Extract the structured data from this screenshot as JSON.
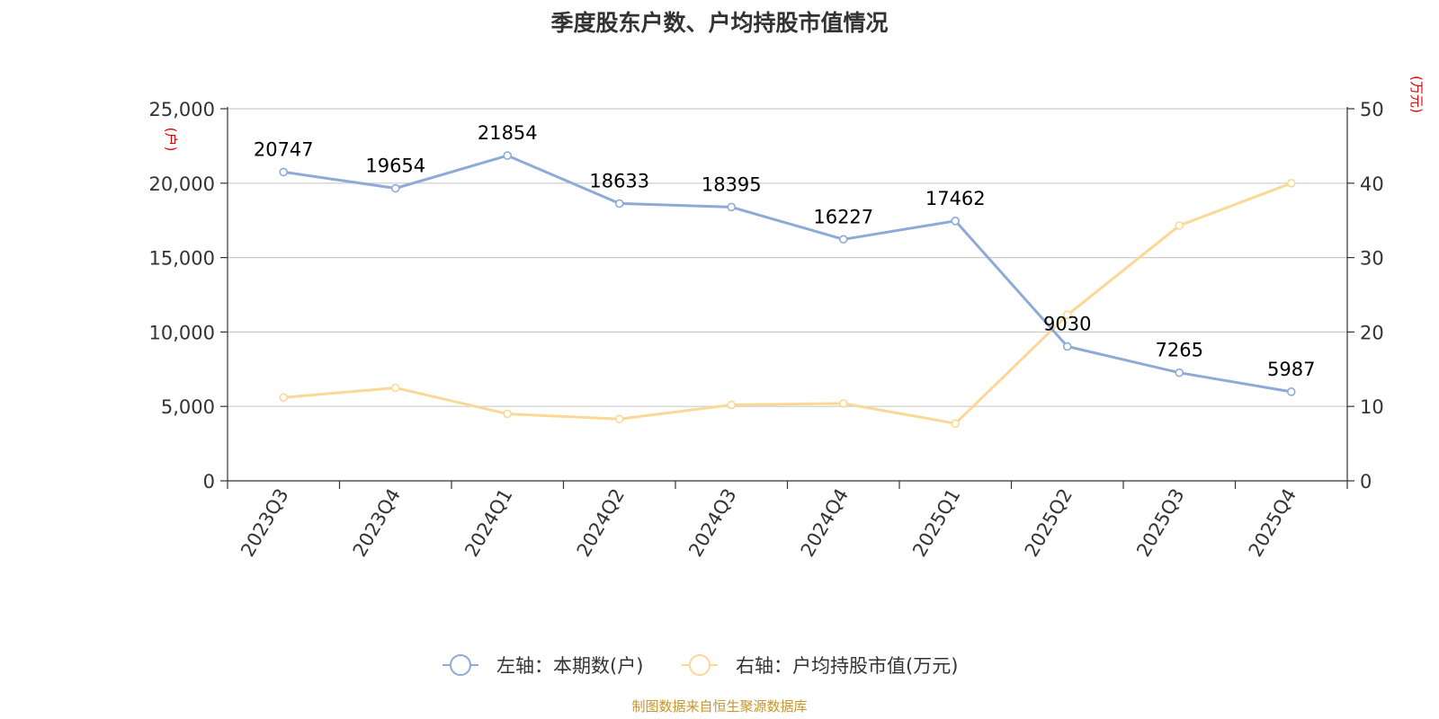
{
  "chart_data": {
    "type": "line",
    "title": "季度股东户数、户均持股市值情况",
    "categories": [
      "2023Q3",
      "2023Q4",
      "2024Q1",
      "2024Q2",
      "2024Q3",
      "2024Q4",
      "2025Q1",
      "2025Q2",
      "2025Q3",
      "2025Q4"
    ],
    "left_axis": {
      "unit": "(户)",
      "ylim": [
        0,
        25000
      ],
      "ticks": [
        0,
        5000,
        10000,
        15000,
        20000,
        25000
      ],
      "tick_labels": [
        "0",
        "5,000",
        "10,000",
        "15,000",
        "20,000",
        "25,000"
      ]
    },
    "right_axis": {
      "unit": "(万元)",
      "ylim": [
        0,
        50
      ],
      "ticks": [
        0,
        10,
        20,
        30,
        40,
        50
      ],
      "tick_labels": [
        "0",
        "10",
        "20",
        "30",
        "40",
        "50"
      ]
    },
    "series": [
      {
        "name": "左轴：本期数(户)",
        "axis": "left",
        "color": "#8eaad6",
        "values": [
          20747,
          19654,
          21854,
          18633,
          18395,
          16227,
          17462,
          9030,
          7265,
          5987
        ],
        "data_labels": [
          "20747",
          "19654",
          "21854",
          "18633",
          "18395",
          "16227",
          "17462",
          "9030",
          "7265",
          "5987"
        ]
      },
      {
        "name": "右轴：户均持股市值(万元)",
        "axis": "right",
        "color": "#fbd896",
        "values": [
          11.2,
          12.5,
          9.0,
          8.3,
          10.2,
          10.4,
          7.7,
          22.3,
          34.3,
          40.0
        ]
      }
    ],
    "grid": true,
    "legend_position": "bottom-center",
    "source": "制图数据来自恒生聚源数据库"
  }
}
